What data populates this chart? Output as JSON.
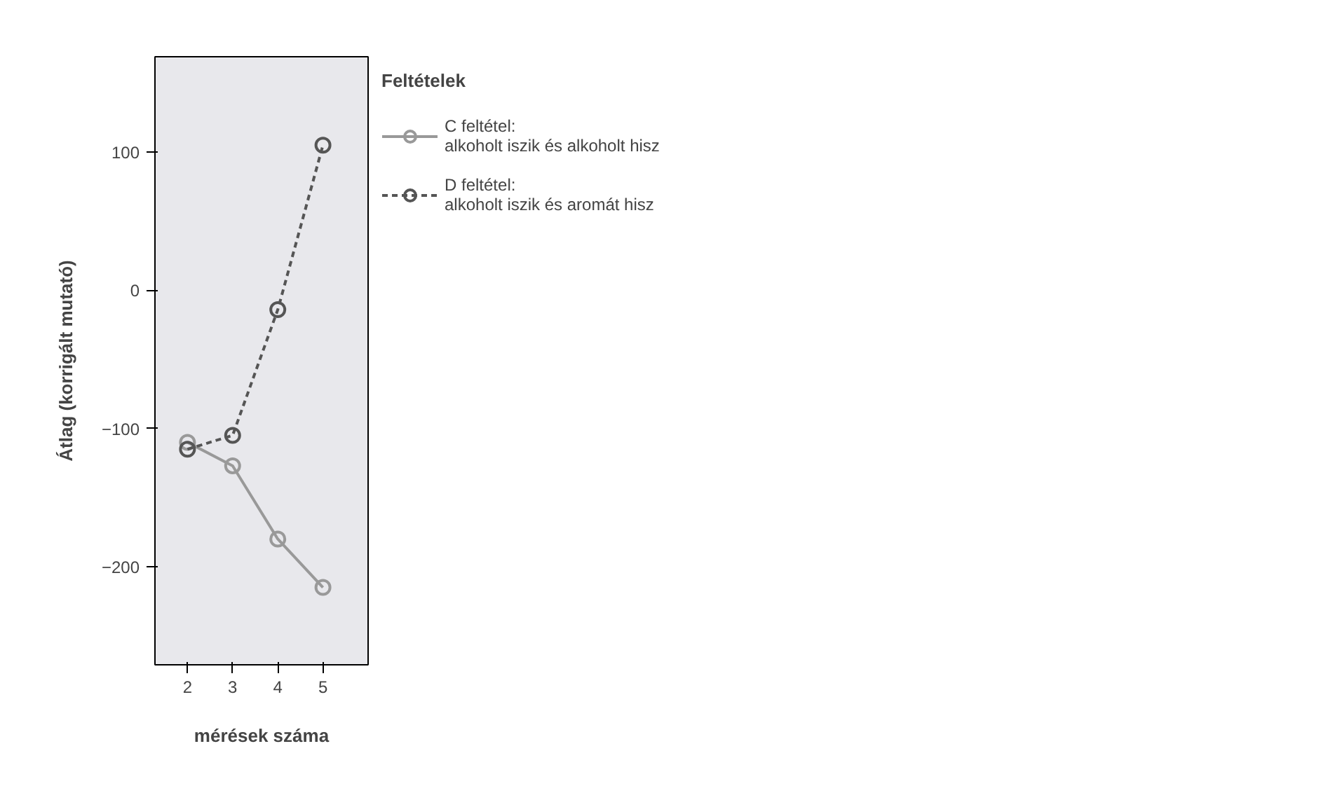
{
  "chart_data": {
    "type": "line",
    "xlabel": "mérések száma",
    "ylabel": "Átlag (korrigált mutató)",
    "legend_title": "Feltételek",
    "x": [
      2,
      3,
      4,
      5
    ],
    "xlim": [
      1.28,
      6.0
    ],
    "xticks": [
      2,
      3,
      4,
      5
    ],
    "ylim": [
      -271,
      169
    ],
    "yticks": [
      {
        "value": 100,
        "label": "100"
      },
      {
        "value": 0,
        "label": "0"
      },
      {
        "value": -100,
        "label": "−100"
      },
      {
        "value": -200,
        "label": "−200"
      }
    ],
    "grid": false,
    "legend": "right",
    "marker": "circle",
    "series": [
      {
        "name": "C feltétel:\nalkoholt iszik és alkoholt hisz",
        "color": "#999999",
        "line_style": "solid",
        "values": [
          -110,
          -127,
          -180,
          -215
        ]
      },
      {
        "name": "D feltétel:\nalkoholt iszik és aromát hisz",
        "color": "#555555",
        "line_style": "dashed",
        "values": [
          -115,
          -105,
          -14,
          105
        ]
      }
    ]
  }
}
